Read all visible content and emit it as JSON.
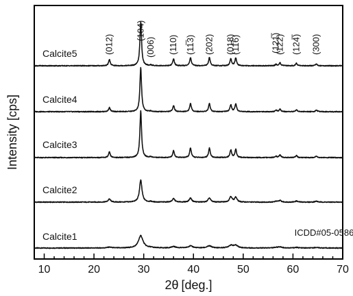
{
  "chart_data": {
    "type": "line",
    "title": "",
    "xlabel_symbol": "2θ",
    "xlabel_unit": "[deg.]",
    "ylabel": "Intensity [cps]",
    "xlim": [
      8,
      70
    ],
    "xticks": [
      10,
      20,
      30,
      40,
      50,
      60,
      70
    ],
    "grid": false,
    "annotation": "ICDD#05-0586",
    "peaks": [
      {
        "label": "(012)",
        "x": 23.1
      },
      {
        "label": "(104)",
        "x": 29.4
      },
      {
        "label": "(006)",
        "x": 31.4
      },
      {
        "label": "(110)",
        "x": 36.0
      },
      {
        "label": "(11̅3)",
        "x": 39.4
      },
      {
        "label": "(202)",
        "x": 43.2
      },
      {
        "label": "(018)",
        "x": 47.5
      },
      {
        "label": "(11̅6)",
        "x": 48.5
      },
      {
        "label": "(121̅)",
        "x": 56.6
      },
      {
        "label": "(122)",
        "x": 57.4
      },
      {
        "label": "(124̅)",
        "x": 60.7
      },
      {
        "label": "(300)",
        "x": 64.7
      }
    ],
    "series": [
      {
        "name": "Calcite1",
        "peak_width": 0.55,
        "peak_heights": [
          0.06,
          0.9,
          0.03,
          0.1,
          0.15,
          0.15,
          0.18,
          0.18,
          0.04,
          0.07,
          0.04,
          0.04
        ]
      },
      {
        "name": "Calcite2",
        "peak_width": 0.3,
        "peak_heights": [
          0.22,
          1.6,
          0.04,
          0.25,
          0.3,
          0.3,
          0.4,
          0.35,
          0.06,
          0.12,
          0.08,
          0.07
        ]
      },
      {
        "name": "Calcite3",
        "peak_width": 0.2,
        "peak_heights": [
          0.4,
          3.4,
          0.06,
          0.5,
          0.7,
          0.7,
          0.55,
          0.6,
          0.1,
          0.2,
          0.15,
          0.12
        ]
      },
      {
        "name": "Calcite4",
        "peak_width": 0.2,
        "peak_heights": [
          0.3,
          3.2,
          0.05,
          0.45,
          0.6,
          0.6,
          0.5,
          0.55,
          0.1,
          0.18,
          0.14,
          0.12
        ]
      },
      {
        "name": "Calcite5",
        "peak_width": 0.2,
        "peak_heights": [
          0.45,
          3.2,
          0.06,
          0.5,
          0.6,
          0.6,
          0.5,
          0.55,
          0.1,
          0.22,
          0.18,
          0.15
        ]
      }
    ]
  }
}
